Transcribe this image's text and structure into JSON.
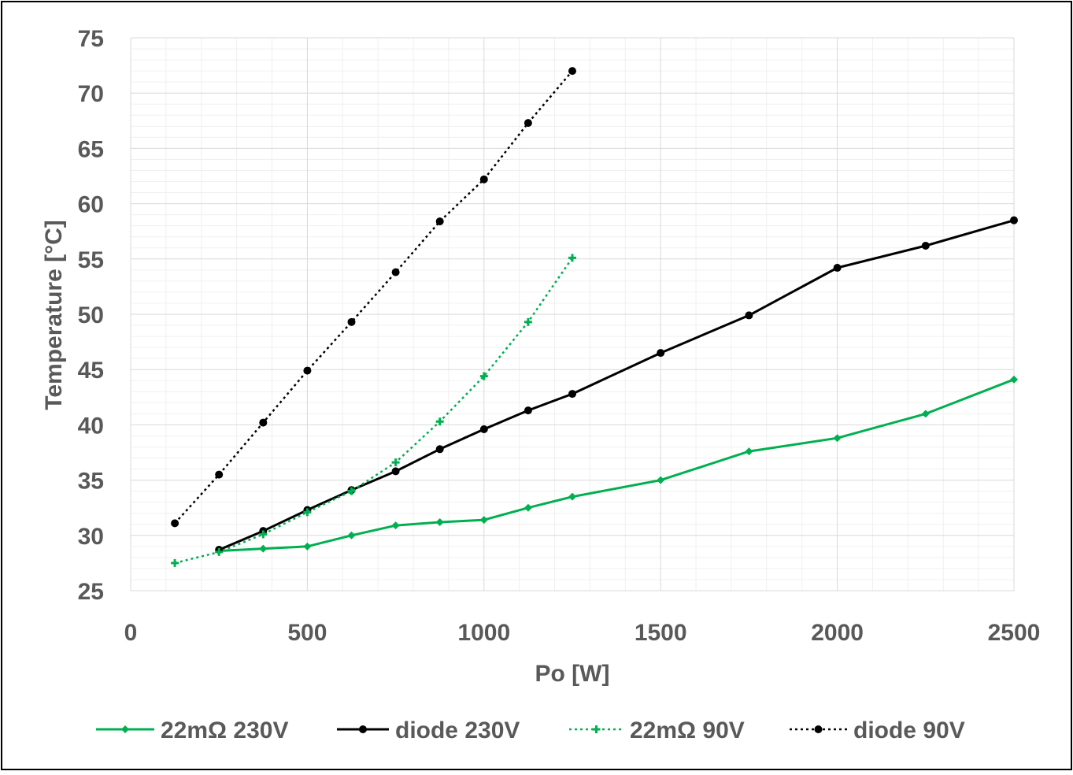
{
  "chart_data": {
    "type": "line",
    "xlabel": "Po [W]",
    "ylabel": "Temperature [°C]",
    "xlim": [
      0,
      2500
    ],
    "ylim": [
      25,
      75
    ],
    "x_ticks": [
      "0",
      "500",
      "1000",
      "1500",
      "2000",
      "2500"
    ],
    "y_ticks": [
      "25",
      "30",
      "35",
      "40",
      "45",
      "50",
      "55",
      "60",
      "65",
      "70",
      "75"
    ],
    "grid": true,
    "minor_grid": true,
    "legend_position": "bottom",
    "series": [
      {
        "name": "22mΩ 230V",
        "color": "#00b050",
        "line_style": "solid",
        "marker": "diamond",
        "points": [
          [
            250,
            28.6
          ],
          [
            375,
            28.8
          ],
          [
            500,
            29.0
          ],
          [
            625,
            30.0
          ],
          [
            750,
            30.9
          ],
          [
            875,
            31.2
          ],
          [
            1000,
            31.4
          ],
          [
            1125,
            32.5
          ],
          [
            1250,
            33.5
          ],
          [
            1500,
            35.0
          ],
          [
            1750,
            37.6
          ],
          [
            2000,
            38.8
          ],
          [
            2250,
            41.0
          ],
          [
            2500,
            44.1
          ]
        ]
      },
      {
        "name": "diode 230V",
        "color": "#000000",
        "line_style": "solid",
        "marker": "circle",
        "points": [
          [
            250,
            28.7
          ],
          [
            375,
            30.4
          ],
          [
            500,
            32.3
          ],
          [
            625,
            34.1
          ],
          [
            750,
            35.8
          ],
          [
            875,
            37.8
          ],
          [
            1000,
            39.6
          ],
          [
            1125,
            41.3
          ],
          [
            1250,
            42.8
          ],
          [
            1500,
            46.5
          ],
          [
            1750,
            49.9
          ],
          [
            2000,
            54.2
          ],
          [
            2250,
            56.2
          ],
          [
            2500,
            58.5
          ]
        ]
      },
      {
        "name": "22mΩ 90V",
        "color": "#00b050",
        "line_style": "dotted",
        "marker": "plus",
        "points": [
          [
            125,
            27.5
          ],
          [
            250,
            28.5
          ],
          [
            375,
            30.1
          ],
          [
            500,
            32.1
          ],
          [
            625,
            34.0
          ],
          [
            750,
            36.6
          ],
          [
            875,
            40.3
          ],
          [
            1000,
            44.4
          ],
          [
            1125,
            49.3
          ],
          [
            1250,
            55.1
          ]
        ]
      },
      {
        "name": "diode 90V",
        "color": "#000000",
        "line_style": "dotted",
        "marker": "circle",
        "points": [
          [
            125,
            31.1
          ],
          [
            250,
            35.5
          ],
          [
            375,
            40.2
          ],
          [
            500,
            44.9
          ],
          [
            625,
            49.3
          ],
          [
            750,
            53.8
          ],
          [
            875,
            58.4
          ],
          [
            1000,
            62.2
          ],
          [
            1125,
            67.3
          ],
          [
            1250,
            72.0
          ]
        ]
      }
    ]
  }
}
